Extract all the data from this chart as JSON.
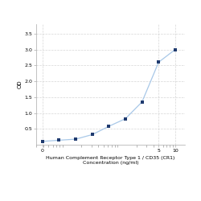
{
  "x_values": [
    0.039,
    0.078,
    0.156,
    0.313,
    0.625,
    1.25,
    2.5,
    5,
    10
  ],
  "y_values": [
    0.105,
    0.142,
    0.175,
    0.32,
    0.58,
    0.82,
    1.35,
    2.6,
    3.0
  ],
  "line_color": "#a8c8e8",
  "marker_color": "#1f3a6e",
  "marker_size": 3.0,
  "marker_style": "s",
  "line_width": 0.9,
  "xlabel_line1": "Human Complement Receptor Type 1 / CD35 (CR1)",
  "xlabel_line2": "Concentration (ng/ml)",
  "ylabel": "OD",
  "xlim_log": [
    0.03,
    15
  ],
  "ylim": [
    0,
    3.8
  ],
  "yticks": [
    0.5,
    1,
    1.5,
    2,
    2.5,
    3,
    3.5
  ],
  "xtick_positions": [
    0.039,
    5,
    10
  ],
  "xtick_labels": [
    "0",
    "5",
    "10"
  ],
  "grid_color": "#cccccc",
  "grid_style": "--",
  "grid_alpha": 0.8,
  "background_color": "#ffffff",
  "xlabel_fontsize": 4.5,
  "ylabel_fontsize": 5.0,
  "tick_fontsize": 4.5
}
